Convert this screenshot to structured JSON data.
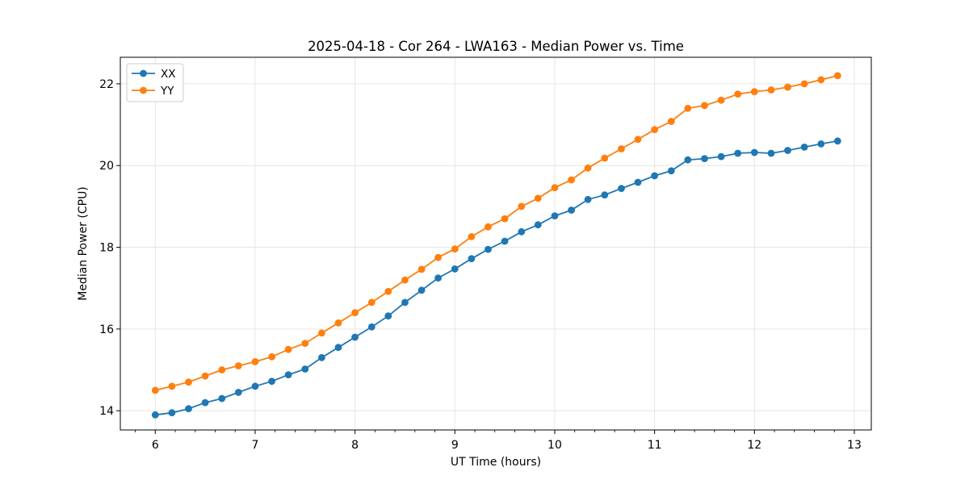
{
  "figure": {
    "background": "#ffffff",
    "spine_color": "#000000",
    "grid_color": "#e6e6e6",
    "tick_color": "#000000",
    "legend_border_color": "#cccccc",
    "legend_background": "#ffffff"
  },
  "chart_data": {
    "type": "line",
    "title": "2025-04-18 - Cor 264 - LWA163 - Median Power vs. Time",
    "xlabel": "UT Time (hours)",
    "ylabel": "Median Power (CPU)",
    "xlim": [
      5.65,
      13.17
    ],
    "ylim": [
      13.53,
      22.65
    ],
    "x_major_ticks": [
      6,
      7,
      8,
      9,
      10,
      11,
      12,
      13
    ],
    "x_minor_tick_step": 0.2,
    "y_major_ticks": [
      14,
      16,
      18,
      20,
      22
    ],
    "grid": true,
    "legend_position": "upper-left",
    "marker": "circle",
    "x": [
      6.0,
      6.167,
      6.333,
      6.5,
      6.667,
      6.833,
      7.0,
      7.167,
      7.333,
      7.5,
      7.667,
      7.833,
      8.0,
      8.167,
      8.333,
      8.5,
      8.667,
      8.833,
      9.0,
      9.167,
      9.333,
      9.5,
      9.667,
      9.833,
      10.0,
      10.167,
      10.333,
      10.5,
      10.667,
      10.833,
      11.0,
      11.167,
      11.333,
      11.5,
      11.667,
      11.833,
      12.0,
      12.167,
      12.333,
      12.5,
      12.667,
      12.833
    ],
    "series": [
      {
        "name": "XX",
        "color": "#1f77b4",
        "values": [
          13.9,
          13.95,
          14.05,
          14.2,
          14.3,
          14.45,
          14.6,
          14.72,
          14.88,
          15.02,
          15.3,
          15.55,
          15.8,
          16.05,
          16.32,
          16.65,
          16.95,
          17.25,
          17.47,
          17.72,
          17.95,
          18.15,
          18.38,
          18.55,
          18.77,
          18.91,
          19.17,
          19.28,
          19.44,
          19.59,
          19.75,
          19.87,
          20.14,
          20.17,
          20.22,
          20.3,
          20.32,
          20.3,
          20.37,
          20.45,
          20.53,
          20.6
        ]
      },
      {
        "name": "YY",
        "color": "#ff7f0e",
        "values": [
          14.5,
          14.6,
          14.7,
          14.85,
          15.0,
          15.1,
          15.2,
          15.32,
          15.5,
          15.65,
          15.9,
          16.15,
          16.4,
          16.65,
          16.92,
          17.2,
          17.46,
          17.75,
          17.96,
          18.26,
          18.5,
          18.7,
          19.0,
          19.2,
          19.46,
          19.65,
          19.94,
          20.18,
          20.41,
          20.64,
          20.88,
          21.08,
          21.4,
          21.47,
          21.6,
          21.75,
          21.81,
          21.85,
          21.92,
          22.0,
          22.1,
          22.2
        ]
      }
    ]
  }
}
